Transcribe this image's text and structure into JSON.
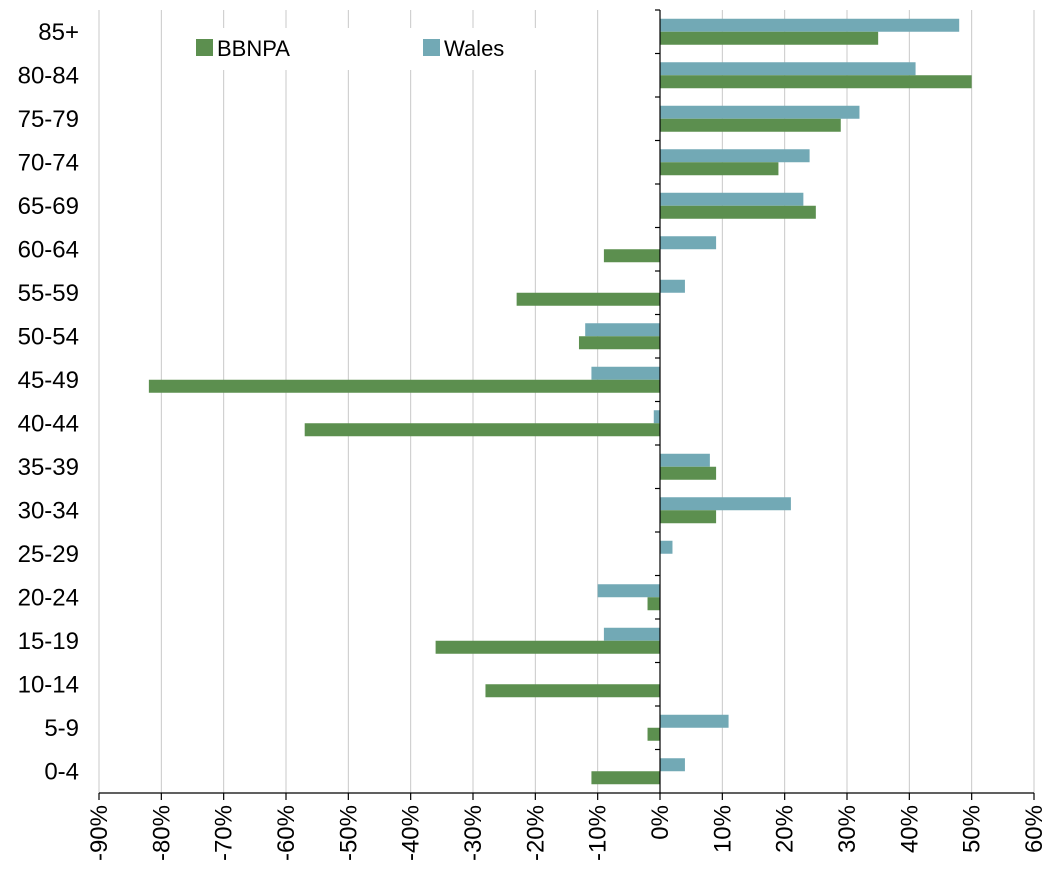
{
  "chart_data": {
    "type": "bar",
    "orientation": "horizontal",
    "categories": [
      "0-4",
      "5-9",
      "10-14",
      "15-19",
      "20-24",
      "25-29",
      "30-34",
      "35-39",
      "40-44",
      "45-49",
      "50-54",
      "55-59",
      "60-64",
      "65-69",
      "70-74",
      "75-79",
      "80-84",
      "85+"
    ],
    "series": [
      {
        "name": "BBNPA",
        "color": "#5c8f4f",
        "values": [
          -11,
          -2,
          -28,
          -36,
          -2,
          0,
          9,
          9,
          -57,
          -82,
          -13,
          -23,
          -9,
          25,
          19,
          29,
          50,
          35
        ]
      },
      {
        "name": "Wales",
        "color": "#72a9b5",
        "values": [
          4,
          11,
          0,
          -9,
          -10,
          2,
          21,
          8,
          -1,
          -11,
          -12,
          4,
          9,
          23,
          24,
          32,
          41,
          48
        ]
      }
    ],
    "xlim": [
      -90,
      60
    ],
    "xticks": [
      "-90%",
      "-80%",
      "-70%",
      "-60%",
      "-50%",
      "-40%",
      "-30%",
      "-20%",
      "-10%",
      "0%",
      "10%",
      "20%",
      "30%",
      "40%",
      "50%",
      "60%"
    ],
    "grid": "vertical",
    "legend_position": "top-left",
    "title": "",
    "xlabel": "",
    "ylabel": ""
  }
}
